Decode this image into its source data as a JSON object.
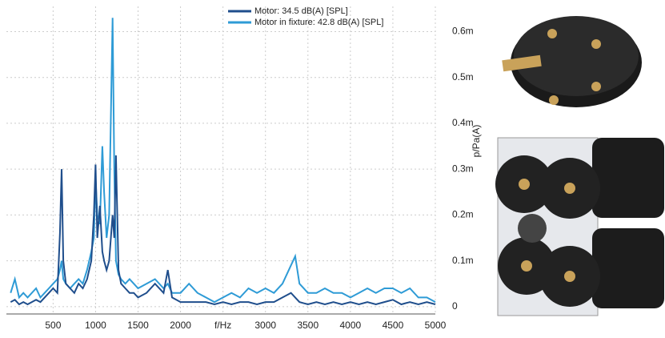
{
  "chart_data": {
    "type": "line",
    "x": [
      0,
      50,
      100,
      150,
      200,
      250,
      300,
      350,
      400,
      450,
      500,
      550,
      580,
      600,
      620,
      650,
      700,
      750,
      800,
      850,
      900,
      950,
      980,
      1000,
      1020,
      1050,
      1080,
      1100,
      1130,
      1160,
      1200,
      1220,
      1240,
      1270,
      1300,
      1350,
      1400,
      1450,
      1500,
      1600,
      1700,
      1800,
      1850,
      1900,
      2000,
      2100,
      2200,
      2300,
      2400,
      2500,
      2600,
      2700,
      2800,
      2900,
      3000,
      3100,
      3200,
      3300,
      3350,
      3400,
      3500,
      3600,
      3700,
      3800,
      3900,
      4000,
      4100,
      4200,
      4300,
      4400,
      4500,
      4600,
      4700,
      4800,
      4900,
      5000
    ],
    "series": [
      {
        "name": "Motor: 34.5 dB(A) [SPL]",
        "color": "#1f4e8c",
        "values": [
          0.01,
          0.015,
          0.005,
          0.01,
          0.005,
          0.01,
          0.015,
          0.01,
          0.02,
          0.03,
          0.04,
          0.03,
          0.16,
          0.3,
          0.1,
          0.05,
          0.04,
          0.03,
          0.05,
          0.04,
          0.06,
          0.1,
          0.2,
          0.31,
          0.15,
          0.22,
          0.12,
          0.1,
          0.08,
          0.1,
          0.2,
          0.15,
          0.33,
          0.08,
          0.05,
          0.04,
          0.03,
          0.03,
          0.02,
          0.03,
          0.05,
          0.03,
          0.08,
          0.02,
          0.01,
          0.01,
          0.01,
          0.01,
          0.005,
          0.01,
          0.005,
          0.01,
          0.01,
          0.005,
          0.01,
          0.01,
          0.02,
          0.03,
          0.02,
          0.01,
          0.005,
          0.01,
          0.005,
          0.01,
          0.005,
          0.01,
          0.005,
          0.01,
          0.005,
          0.01,
          0.015,
          0.005,
          0.01,
          0.005,
          0.01,
          0.005
        ]
      },
      {
        "name": "Motor in fixture: 42.8 dB(A) [SPL]",
        "color": "#2e9bd6",
        "values": [
          0.03,
          0.06,
          0.02,
          0.03,
          0.02,
          0.03,
          0.04,
          0.02,
          0.03,
          0.04,
          0.05,
          0.06,
          0.08,
          0.1,
          0.06,
          0.05,
          0.04,
          0.05,
          0.06,
          0.05,
          0.08,
          0.12,
          0.15,
          0.28,
          0.2,
          0.18,
          0.35,
          0.25,
          0.15,
          0.2,
          0.63,
          0.3,
          0.1,
          0.07,
          0.06,
          0.05,
          0.06,
          0.05,
          0.04,
          0.05,
          0.06,
          0.04,
          0.05,
          0.03,
          0.03,
          0.05,
          0.03,
          0.02,
          0.01,
          0.02,
          0.03,
          0.02,
          0.04,
          0.03,
          0.04,
          0.03,
          0.05,
          0.09,
          0.11,
          0.05,
          0.03,
          0.03,
          0.04,
          0.03,
          0.03,
          0.02,
          0.03,
          0.04,
          0.03,
          0.04,
          0.04,
          0.03,
          0.04,
          0.02,
          0.02,
          0.01
        ]
      }
    ],
    "xlim": [
      -50,
      5000
    ],
    "xticks": [
      500,
      1000,
      1500,
      2000,
      {
        "value": 2500,
        "label": "f/Hz"
      },
      3000,
      3500,
      4000,
      4500,
      5000
    ],
    "ylim": [
      -0.016,
      0.655
    ],
    "yticks": [
      0,
      {
        "value": 0.1,
        "label": "0.1m"
      },
      {
        "value": 0.2,
        "label": "0.2m"
      },
      {
        "value": 0.3,
        "label": "0.3m"
      },
      {
        "value": 0.4,
        "label": "0.4m"
      },
      {
        "value": 0.5,
        "label": "0.5m"
      },
      {
        "value": 0.6,
        "label": "0.6m"
      }
    ],
    "y_label": "p/Pa(A)",
    "grid": true,
    "legend": "top"
  }
}
